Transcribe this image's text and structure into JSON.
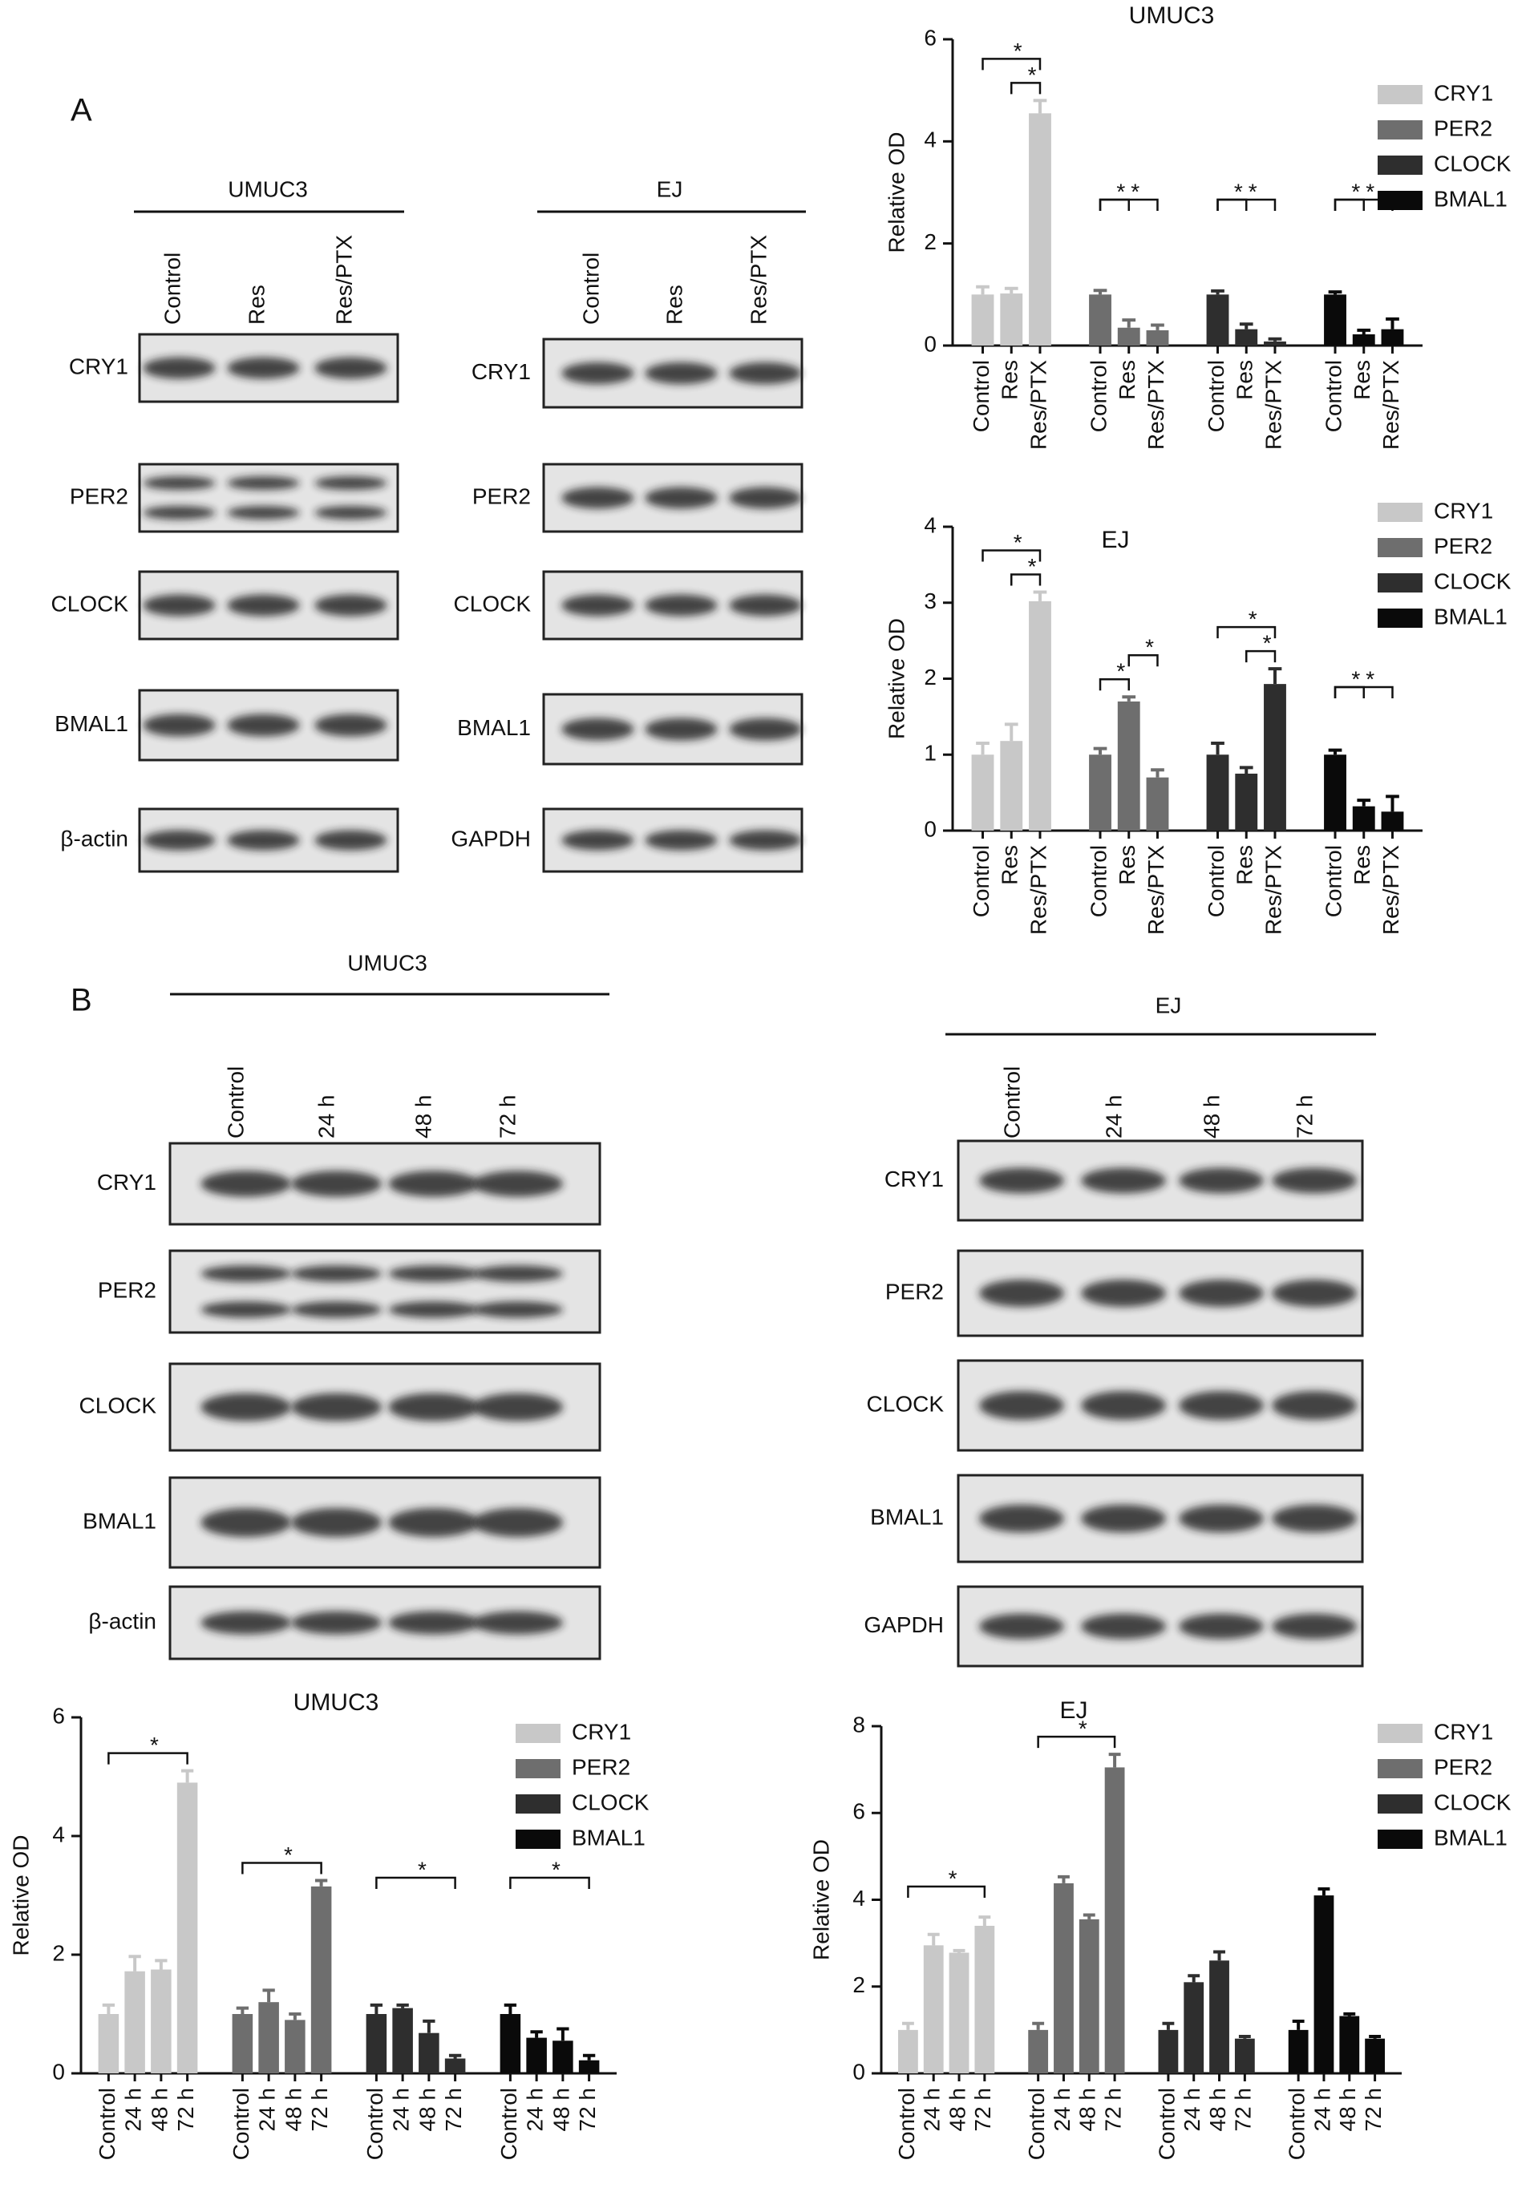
{
  "panel_labels": [
    "A",
    "B"
  ],
  "blots": [
    {
      "title": "UMUC3",
      "lanes": [
        "Control",
        "Res",
        "Res/PTX"
      ],
      "rows": [
        "CRY1",
        "PER2",
        "CLOCK",
        "BMAL1",
        "β-actin"
      ]
    },
    {
      "title": "EJ",
      "lanes": [
        "Control",
        "Res",
        "Res/PTX"
      ],
      "rows": [
        "CRY1",
        "PER2",
        "CLOCK",
        "BMAL1",
        "GAPDH"
      ]
    },
    {
      "title": "UMUC3",
      "lanes": [
        "Control",
        "24 h",
        "48 h",
        "72 h"
      ],
      "rows": [
        "CRY1",
        "PER2",
        "CLOCK",
        "BMAL1",
        "β-actin"
      ]
    },
    {
      "title": "EJ",
      "lanes": [
        "Control",
        "24 h",
        "48 h",
        "72 h"
      ],
      "rows": [
        "CRY1",
        "PER2",
        "CLOCK",
        "BMAL1",
        "GAPDH"
      ]
    }
  ],
  "chart_data": [
    {
      "type": "bar",
      "title": "UMUC3",
      "y_label": "Relative OD",
      "categories": [
        "Control",
        "Res",
        "Res/PTX"
      ],
      "series": [
        {
          "name": "CRY1",
          "color": "#c8c8c8",
          "values": [
            1.0,
            1.02,
            4.55
          ],
          "errors": [
            0.15,
            0.1,
            0.25
          ]
        },
        {
          "name": "PER2",
          "color": "#6e6e6e",
          "values": [
            1.0,
            0.35,
            0.3
          ],
          "errors": [
            0.08,
            0.15,
            0.1
          ]
        },
        {
          "name": "CLOCK",
          "color": "#2e2e2e",
          "values": [
            1.0,
            0.32,
            0.08
          ],
          "errors": [
            0.07,
            0.1,
            0.05
          ]
        },
        {
          "name": "BMAL1",
          "color": "#0a0a0a",
          "values": [
            1.0,
            0.22,
            0.32
          ],
          "errors": [
            0.05,
            0.08,
            0.2
          ]
        }
      ],
      "ylim": [
        0,
        6
      ],
      "yticks": [
        0,
        2,
        4,
        6
      ],
      "significance": [
        {
          "series": 0,
          "from": 1,
          "to": 2,
          "label": "*"
        },
        {
          "series": 0,
          "from": 0,
          "to": 2,
          "label": "*"
        },
        {
          "series": 1,
          "from": 0,
          "to": 1,
          "label": "*"
        },
        {
          "series": 1,
          "from": 0,
          "to": 2,
          "label": "*"
        },
        {
          "series": 2,
          "from": 0,
          "to": 1,
          "label": "*"
        },
        {
          "series": 2,
          "from": 0,
          "to": 2,
          "label": "*"
        },
        {
          "series": 3,
          "from": 0,
          "to": 1,
          "label": "*"
        },
        {
          "series": 3,
          "from": 0,
          "to": 2,
          "label": "*"
        }
      ]
    },
    {
      "type": "bar",
      "title": "EJ",
      "y_label": "Relative OD",
      "categories": [
        "Control",
        "Res",
        "Res/PTX"
      ],
      "series": [
        {
          "name": "CRY1",
          "color": "#c8c8c8",
          "values": [
            1.0,
            1.18,
            3.02
          ],
          "errors": [
            0.15,
            0.22,
            0.12
          ]
        },
        {
          "name": "PER2",
          "color": "#6e6e6e",
          "values": [
            1.0,
            1.7,
            0.7
          ],
          "errors": [
            0.08,
            0.06,
            0.1
          ]
        },
        {
          "name": "CLOCK",
          "color": "#2e2e2e",
          "values": [
            1.0,
            0.75,
            1.93
          ],
          "errors": [
            0.15,
            0.08,
            0.2
          ]
        },
        {
          "name": "BMAL1",
          "color": "#0a0a0a",
          "values": [
            1.0,
            0.32,
            0.25
          ],
          "errors": [
            0.06,
            0.08,
            0.2
          ]
        }
      ],
      "ylim": [
        0,
        4
      ],
      "yticks": [
        0,
        1,
        2,
        3,
        4
      ],
      "significance": [
        {
          "series": 0,
          "from": 1,
          "to": 2,
          "label": "*"
        },
        {
          "series": 0,
          "from": 0,
          "to": 2,
          "label": "*"
        },
        {
          "series": 1,
          "from": 0,
          "to": 1,
          "label": "*"
        },
        {
          "series": 1,
          "from": 1,
          "to": 2,
          "label": "*"
        },
        {
          "series": 2,
          "from": 1,
          "to": 2,
          "label": "*"
        },
        {
          "series": 2,
          "from": 0,
          "to": 2,
          "label": "*"
        },
        {
          "series": 3,
          "from": 0,
          "to": 1,
          "label": "*"
        },
        {
          "series": 3,
          "from": 0,
          "to": 2,
          "label": "*"
        }
      ]
    },
    {
      "type": "bar",
      "title": "UMUC3",
      "y_label": "Relative OD",
      "categories": [
        "Control",
        "24 h",
        "48 h",
        "72 h"
      ],
      "series": [
        {
          "name": "CRY1",
          "color": "#c8c8c8",
          "values": [
            1.0,
            1.72,
            1.75,
            4.9
          ],
          "errors": [
            0.15,
            0.25,
            0.15,
            0.2
          ]
        },
        {
          "name": "PER2",
          "color": "#6e6e6e",
          "values": [
            1.0,
            1.2,
            0.9,
            3.15
          ],
          "errors": [
            0.1,
            0.2,
            0.1,
            0.1
          ]
        },
        {
          "name": "CLOCK",
          "color": "#2e2e2e",
          "values": [
            1.0,
            1.1,
            0.68,
            0.25
          ],
          "errors": [
            0.15,
            0.05,
            0.2,
            0.05
          ]
        },
        {
          "name": "BMAL1",
          "color": "#0a0a0a",
          "values": [
            1.0,
            0.6,
            0.55,
            0.22
          ],
          "errors": [
            0.15,
            0.1,
            0.2,
            0.08
          ]
        }
      ],
      "ylim": [
        0,
        6
      ],
      "yticks": [
        0,
        2,
        4,
        6
      ],
      "significance": [
        {
          "series": 0,
          "from": 0,
          "to": 3,
          "label": "*"
        },
        {
          "series": 1,
          "from": 0,
          "to": 3,
          "label": "*"
        },
        {
          "series": 2,
          "from": 0,
          "to": 3,
          "label": "*"
        },
        {
          "series": 3,
          "from": 0,
          "to": 3,
          "label": "*"
        }
      ]
    },
    {
      "type": "bar",
      "title": "EJ",
      "y_label": "Relative OD",
      "categories": [
        "Control",
        "24 h",
        "48 h",
        "72 h"
      ],
      "series": [
        {
          "name": "CRY1",
          "color": "#c8c8c8",
          "values": [
            1.0,
            2.95,
            2.78,
            3.4
          ],
          "errors": [
            0.15,
            0.25,
            0.05,
            0.2
          ]
        },
        {
          "name": "PER2",
          "color": "#6e6e6e",
          "values": [
            1.0,
            4.38,
            3.55,
            7.05
          ],
          "errors": [
            0.15,
            0.15,
            0.1,
            0.3
          ]
        },
        {
          "name": "CLOCK",
          "color": "#2e2e2e",
          "values": [
            1.0,
            2.1,
            2.6,
            0.8
          ],
          "errors": [
            0.15,
            0.15,
            0.2,
            0.05
          ]
        },
        {
          "name": "BMAL1",
          "color": "#0a0a0a",
          "values": [
            1.0,
            4.1,
            1.32,
            0.8
          ],
          "errors": [
            0.2,
            0.15,
            0.05,
            0.05
          ]
        }
      ],
      "ylim": [
        0,
        8
      ],
      "yticks": [
        0,
        2,
        4,
        6,
        8
      ],
      "significance": [
        {
          "series": 0,
          "from": 0,
          "to": 3,
          "label": "*"
        },
        {
          "series": 1,
          "from": 0,
          "to": 3,
          "label": "*"
        }
      ]
    }
  ]
}
